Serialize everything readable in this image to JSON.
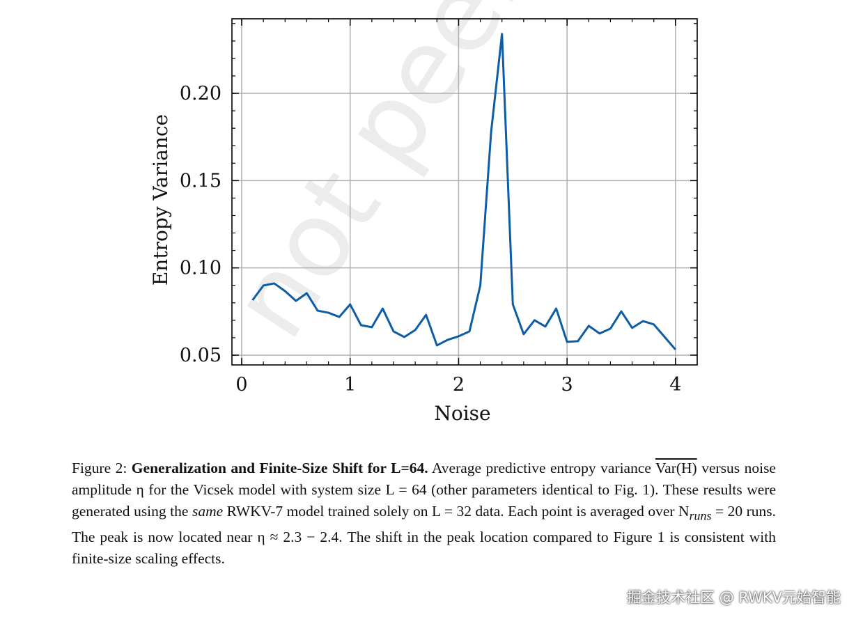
{
  "chart_data": {
    "type": "line",
    "title": "",
    "xlabel": "Noise",
    "ylabel": "Entropy Variance",
    "xlim": [
      -0.09,
      4.2
    ],
    "ylim": [
      0.0444,
      0.2427
    ],
    "xticks": [
      0,
      1,
      2,
      3,
      4
    ],
    "xtick_labels": [
      "0",
      "1",
      "2",
      "3",
      "4"
    ],
    "yticks": [
      0.05,
      0.1,
      0.15,
      0.2
    ],
    "ytick_labels": [
      "0.05",
      "0.10",
      "0.15",
      "0.20"
    ],
    "grid": true,
    "line_color": "#0c5da5",
    "x": [
      0.1,
      0.2,
      0.3,
      0.4,
      0.5,
      0.6,
      0.7,
      0.8,
      0.9,
      1.0,
      1.1,
      1.2,
      1.3,
      1.4,
      1.5,
      1.6,
      1.7,
      1.8,
      1.9,
      2.0,
      2.1,
      2.2,
      2.3,
      2.4,
      2.5,
      2.6,
      2.7,
      2.8,
      2.9,
      3.0,
      3.1,
      3.2,
      3.3,
      3.4,
      3.5,
      3.6,
      3.7,
      3.8,
      3.9,
      4.0
    ],
    "y": [
      0.0815,
      0.0899,
      0.0911,
      0.0867,
      0.0811,
      0.0855,
      0.0755,
      0.0743,
      0.0719,
      0.0791,
      0.0672,
      0.066,
      0.0767,
      0.0636,
      0.0604,
      0.0644,
      0.0731,
      0.0556,
      0.0588,
      0.0608,
      0.0636,
      0.0899,
      0.178,
      0.234,
      0.0791,
      0.062,
      0.07,
      0.0664,
      0.0767,
      0.0576,
      0.058,
      0.0668,
      0.0624,
      0.0652,
      0.0751,
      0.0656,
      0.0695,
      0.0676,
      0.0604,
      0.0532
    ]
  },
  "caption": {
    "label": "Figure 2:",
    "bold_title": "Generalization and Finite-Size Shift for L=64.",
    "t1": "Average predictive entropy variance",
    "var_h": "Var(H)",
    "t2": "versus noise amplitude η for the Vicsek model with system size L = 64 (other parameters identical to Fig. 1). These results were generated using the",
    "same": "same",
    "t3": "RWKV-7 model trained solely on L = 32 data. Each point is averaged over N",
    "runs_sub": "runs",
    "t4": "= 20 runs. The peak is now located near η ≈ 2.3 − 2.4. The shift in the peak location compared to Figure 1 is consistent with finite-size scaling effects."
  },
  "watermark": "not peer reviewed",
  "credit": "掘金技术社区 @ RWKV元始智能"
}
